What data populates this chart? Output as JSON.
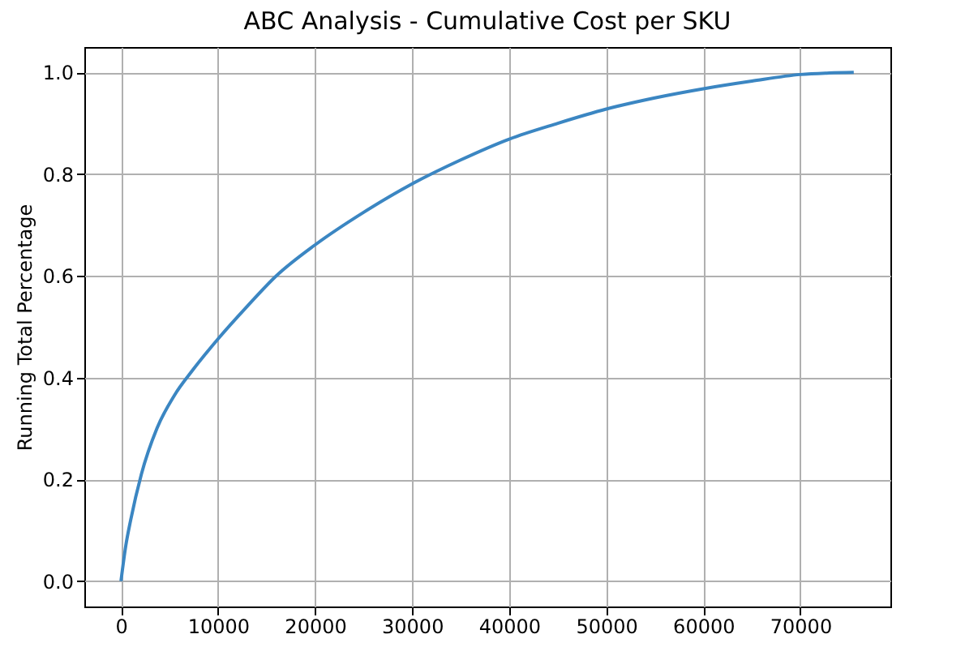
{
  "chart_data": {
    "type": "line",
    "title": "ABC Analysis - Cumulative Cost per SKU",
    "ylabel": "Running Total Percentage",
    "x": [
      0,
      500,
      1000,
      2100,
      3700,
      5500,
      7400,
      10000,
      13000,
      16000,
      20000,
      25000,
      30000,
      35000,
      40000,
      45000,
      50000,
      55000,
      60000,
      65000,
      70000,
      73000,
      75500
    ],
    "series": [
      {
        "color": "#3b86c2",
        "values": [
          0,
          0.07,
          0.12,
          0.21,
          0.3,
          0.365,
          0.415,
          0.476,
          0.54,
          0.6,
          0.661,
          0.725,
          0.781,
          0.828,
          0.869,
          0.9,
          0.928,
          0.95,
          0.968,
          0.983,
          0.996,
          0.999,
          1.0
        ]
      }
    ],
    "xlim": [
      -3775,
      79275
    ],
    "ylim": [
      -0.05,
      1.05
    ],
    "xticks": [
      0,
      10000,
      20000,
      30000,
      40000,
      50000,
      60000,
      70000
    ],
    "yticks": [
      {
        "value": 0,
        "label": "0.0"
      },
      0.2,
      0.4,
      0.6,
      0.8,
      {
        "value": 1,
        "label": "1.0"
      }
    ],
    "grid": true,
    "legend": false,
    "line_style": "solid",
    "marker": "none"
  }
}
